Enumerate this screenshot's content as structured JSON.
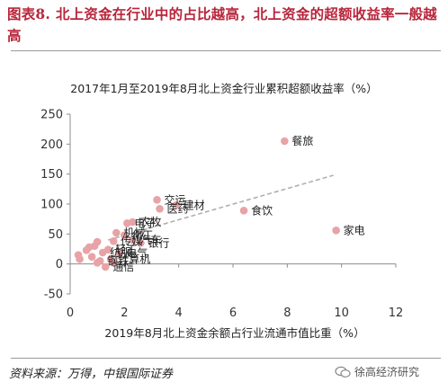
{
  "figure": {
    "label": "图表8.",
    "title": "北上资金在行业中的占比越高，北上资金的超额收益率一般越高"
  },
  "source": "资料来源：万得，中银国际证券",
  "watermark": "徐高经济研究",
  "colors": {
    "title": "#b8253a",
    "point": "#e7a3a6",
    "trend": "#b0b0b0"
  },
  "chart_data": {
    "type": "scatter",
    "title": "2017年1月至2019年8月北上资金行业累积超额收益率（%）",
    "xlabel": "2019年8月北上资金余额占行业流通市值比重（%）",
    "ylabel": "",
    "xlim": [
      0,
      12
    ],
    "ylim": [
      -50,
      250
    ],
    "xticks": [
      0,
      2,
      4,
      6,
      8,
      10,
      12
    ],
    "yticks": [
      -50,
      0,
      50,
      100,
      150,
      200,
      250
    ],
    "grid": false,
    "trendline": {
      "style": "dashed",
      "points": [
        [
          1.4,
          40
        ],
        [
          9.7,
          148
        ]
      ]
    },
    "points": [
      {
        "x": 7.9,
        "y": 205,
        "label": "餐旅"
      },
      {
        "x": 9.8,
        "y": 56,
        "label": "家电"
      },
      {
        "x": 6.4,
        "y": 89,
        "label": "食饮"
      },
      {
        "x": 3.2,
        "y": 107,
        "label": "交运"
      },
      {
        "x": 3.3,
        "y": 92,
        "label": "医药"
      },
      {
        "x": 3.9,
        "y": 98,
        "label": "建材"
      },
      {
        "x": 2.3,
        "y": 70,
        "label": "农牧"
      },
      {
        "x": 2.1,
        "y": 68,
        "label": "电子"
      },
      {
        "x": 1.7,
        "y": 52,
        "label": "机械"
      },
      {
        "x": 2.0,
        "y": 48,
        "label": "化工"
      },
      {
        "x": 2.3,
        "y": 40,
        "label": "汽车"
      },
      {
        "x": 2.6,
        "y": 35,
        "label": "银行"
      },
      {
        "x": 1.6,
        "y": 38,
        "label": "传媒"
      },
      {
        "x": 1.4,
        "y": 24,
        "label": "轻工"
      },
      {
        "x": 1.2,
        "y": 19,
        "label": "纺服"
      },
      {
        "x": 1.8,
        "y": 18,
        "label": "电气"
      },
      {
        "x": 1.5,
        "y": 8,
        "label": "计算机"
      },
      {
        "x": 1.1,
        "y": 5,
        "label": "钢铁"
      },
      {
        "x": 1.3,
        "y": -5,
        "label": "通信"
      },
      {
        "x": 0.9,
        "y": 30,
        "label": ""
      },
      {
        "x": 1.0,
        "y": 37,
        "label": ""
      },
      {
        "x": 0.7,
        "y": 28,
        "label": ""
      },
      {
        "x": 0.6,
        "y": 23,
        "label": ""
      },
      {
        "x": 0.3,
        "y": 15,
        "label": ""
      },
      {
        "x": 0.35,
        "y": 8,
        "label": ""
      },
      {
        "x": 0.8,
        "y": 12,
        "label": ""
      },
      {
        "x": 1.0,
        "y": 2,
        "label": ""
      },
      {
        "x": 1.6,
        "y": 2,
        "label": ""
      }
    ]
  }
}
